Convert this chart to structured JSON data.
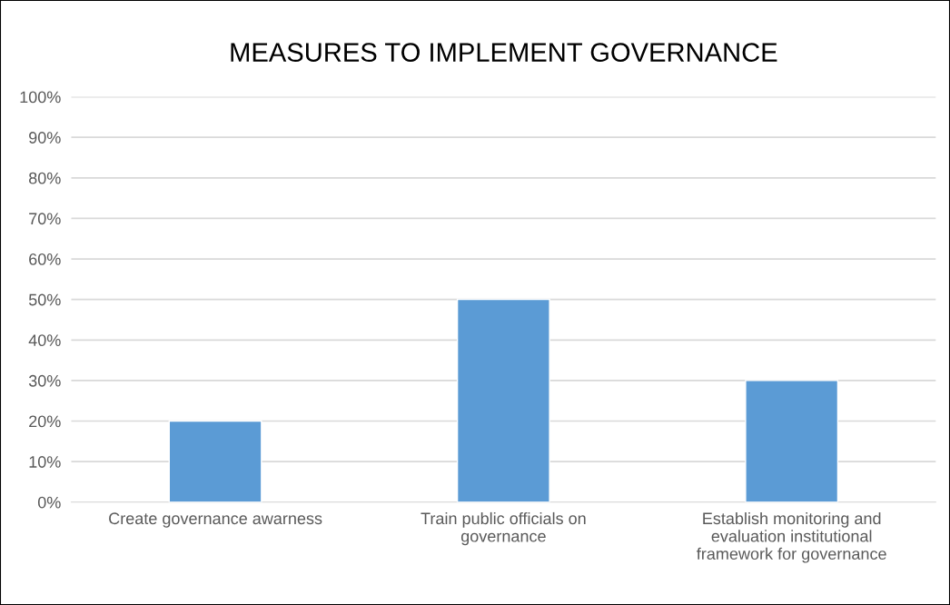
{
  "chart_data": {
    "type": "bar",
    "title": "MEASURES TO IMPLEMENT GOVERNANCE",
    "categories": [
      "Create governance awarness",
      "Train public officials on\ngovernance",
      "Establish monitoring and\nevaluation institutional\nframework for governance"
    ],
    "values": [
      20,
      50,
      30
    ],
    "color": "#5b9bd5",
    "ylim": [
      0,
      100
    ],
    "yticks": [
      {
        "value": 0,
        "label": "0%"
      },
      {
        "value": 10,
        "label": "10%"
      },
      {
        "value": 20,
        "label": "20%"
      },
      {
        "value": 30,
        "label": "30%"
      },
      {
        "value": 40,
        "label": "40%"
      },
      {
        "value": 50,
        "label": "50%"
      },
      {
        "value": 60,
        "label": "60%"
      },
      {
        "value": 70,
        "label": "70%"
      },
      {
        "value": 80,
        "label": "80%"
      },
      {
        "value": 90,
        "label": "90%"
      },
      {
        "value": 100,
        "label": "100%"
      }
    ],
    "grid": "y"
  }
}
